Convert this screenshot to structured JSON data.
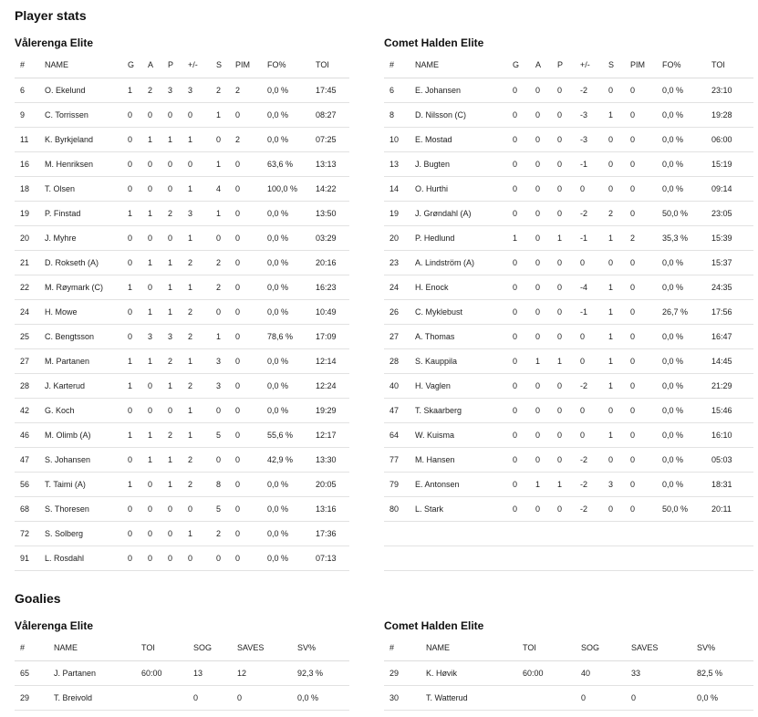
{
  "player_stats_title": "Player stats",
  "goalies_title": "Goalies",
  "skater_headers": [
    "#",
    "NAME",
    "G",
    "A",
    "P",
    "+/-",
    "S",
    "PIM",
    "FO%",
    "TOI"
  ],
  "goalie_headers": [
    "#",
    "NAME",
    "TOI",
    "SOG",
    "SAVES",
    "SV%"
  ],
  "teams": {
    "home": {
      "name": "Vålerenga Elite",
      "skaters": [
        [
          "6",
          "O. Ekelund",
          "1",
          "2",
          "3",
          "3",
          "2",
          "2",
          "0,0 %",
          "17:45"
        ],
        [
          "9",
          "C. Torrissen",
          "0",
          "0",
          "0",
          "0",
          "1",
          "0",
          "0,0 %",
          "08:27"
        ],
        [
          "11",
          "K. Byrkjeland",
          "0",
          "1",
          "1",
          "1",
          "0",
          "2",
          "0,0 %",
          "07:25"
        ],
        [
          "16",
          "M. Henriksen",
          "0",
          "0",
          "0",
          "0",
          "1",
          "0",
          "63,6 %",
          "13:13"
        ],
        [
          "18",
          "T. Olsen",
          "0",
          "0",
          "0",
          "1",
          "4",
          "0",
          "100,0 %",
          "14:22"
        ],
        [
          "19",
          "P. Finstad",
          "1",
          "1",
          "2",
          "3",
          "1",
          "0",
          "0,0 %",
          "13:50"
        ],
        [
          "20",
          "J. Myhre",
          "0",
          "0",
          "0",
          "1",
          "0",
          "0",
          "0,0 %",
          "03:29"
        ],
        [
          "21",
          "D. Rokseth (A)",
          "0",
          "1",
          "1",
          "2",
          "2",
          "0",
          "0,0 %",
          "20:16"
        ],
        [
          "22",
          "M. Røymark (C)",
          "1",
          "0",
          "1",
          "1",
          "2",
          "0",
          "0,0 %",
          "16:23"
        ],
        [
          "24",
          "H. Mowe",
          "0",
          "1",
          "1",
          "2",
          "0",
          "0",
          "0,0 %",
          "10:49"
        ],
        [
          "25",
          "C. Bengtsson",
          "0",
          "3",
          "3",
          "2",
          "1",
          "0",
          "78,6 %",
          "17:09"
        ],
        [
          "27",
          "M. Partanen",
          "1",
          "1",
          "2",
          "1",
          "3",
          "0",
          "0,0 %",
          "12:14"
        ],
        [
          "28",
          "J. Karterud",
          "1",
          "0",
          "1",
          "2",
          "3",
          "0",
          "0,0 %",
          "12:24"
        ],
        [
          "42",
          "G. Koch",
          "0",
          "0",
          "0",
          "1",
          "0",
          "0",
          "0,0 %",
          "19:29"
        ],
        [
          "46",
          "M. Olimb (A)",
          "1",
          "1",
          "2",
          "1",
          "5",
          "0",
          "55,6 %",
          "12:17"
        ],
        [
          "47",
          "S. Johansen",
          "0",
          "1",
          "1",
          "2",
          "0",
          "0",
          "42,9 %",
          "13:30"
        ],
        [
          "56",
          "T. Taimi (A)",
          "1",
          "0",
          "1",
          "2",
          "8",
          "0",
          "0,0 %",
          "20:05"
        ],
        [
          "68",
          "S. Thoresen",
          "0",
          "0",
          "0",
          "0",
          "5",
          "0",
          "0,0 %",
          "13:16"
        ],
        [
          "72",
          "S. Solberg",
          "0",
          "0",
          "0",
          "1",
          "2",
          "0",
          "0,0 %",
          "17:36"
        ],
        [
          "91",
          "L. Rosdahl",
          "0",
          "0",
          "0",
          "0",
          "0",
          "0",
          "0,0 %",
          "07:13"
        ]
      ],
      "goalies": [
        [
          "65",
          "J. Partanen",
          "60:00",
          "13",
          "12",
          "92,3 %"
        ],
        [
          "29",
          "T. Breivold",
          "",
          "0",
          "0",
          "0,0 %"
        ]
      ]
    },
    "away": {
      "name": "Comet Halden Elite",
      "skaters": [
        [
          "6",
          "E. Johansen",
          "0",
          "0",
          "0",
          "-2",
          "0",
          "0",
          "0,0 %",
          "23:10"
        ],
        [
          "8",
          "D. Nilsson (C)",
          "0",
          "0",
          "0",
          "-3",
          "1",
          "0",
          "0,0 %",
          "19:28"
        ],
        [
          "10",
          "E. Mostad",
          "0",
          "0",
          "0",
          "-3",
          "0",
          "0",
          "0,0 %",
          "06:00"
        ],
        [
          "13",
          "J. Bugten",
          "0",
          "0",
          "0",
          "-1",
          "0",
          "0",
          "0,0 %",
          "15:19"
        ],
        [
          "14",
          "O. Hurthi",
          "0",
          "0",
          "0",
          "0",
          "0",
          "0",
          "0,0 %",
          "09:14"
        ],
        [
          "19",
          "J. Grøndahl (A)",
          "0",
          "0",
          "0",
          "-2",
          "2",
          "0",
          "50,0 %",
          "23:05"
        ],
        [
          "20",
          "P. Hedlund",
          "1",
          "0",
          "1",
          "-1",
          "1",
          "2",
          "35,3 %",
          "15:39"
        ],
        [
          "23",
          "A. Lindström (A)",
          "0",
          "0",
          "0",
          "0",
          "0",
          "0",
          "0,0 %",
          "15:37"
        ],
        [
          "24",
          "H. Enock",
          "0",
          "0",
          "0",
          "-4",
          "1",
          "0",
          "0,0 %",
          "24:35"
        ],
        [
          "26",
          "C. Myklebust",
          "0",
          "0",
          "0",
          "-1",
          "1",
          "0",
          "26,7 %",
          "17:56"
        ],
        [
          "27",
          "A. Thomas",
          "0",
          "0",
          "0",
          "0",
          "1",
          "0",
          "0,0 %",
          "16:47"
        ],
        [
          "28",
          "S. Kauppila",
          "0",
          "1",
          "1",
          "0",
          "1",
          "0",
          "0,0 %",
          "14:45"
        ],
        [
          "40",
          "H. Vaglen",
          "0",
          "0",
          "0",
          "-2",
          "1",
          "0",
          "0,0 %",
          "21:29"
        ],
        [
          "47",
          "T. Skaarberg",
          "0",
          "0",
          "0",
          "0",
          "0",
          "0",
          "0,0 %",
          "15:46"
        ],
        [
          "64",
          "W. Kuisma",
          "0",
          "0",
          "0",
          "0",
          "1",
          "0",
          "0,0 %",
          "16:10"
        ],
        [
          "77",
          "M. Hansen",
          "0",
          "0",
          "0",
          "-2",
          "0",
          "0",
          "0,0 %",
          "05:03"
        ],
        [
          "79",
          "E. Antonsen",
          "0",
          "1",
          "1",
          "-2",
          "3",
          "0",
          "0,0 %",
          "18:31"
        ],
        [
          "80",
          "L. Stark",
          "0",
          "0",
          "0",
          "-2",
          "0",
          "0",
          "50,0 %",
          "20:11"
        ]
      ],
      "goalies": [
        [
          "29",
          "K. Høvik",
          "60:00",
          "40",
          "33",
          "82,5 %"
        ],
        [
          "30",
          "T. Watterud",
          "",
          "0",
          "0",
          "0,0 %"
        ]
      ]
    }
  }
}
